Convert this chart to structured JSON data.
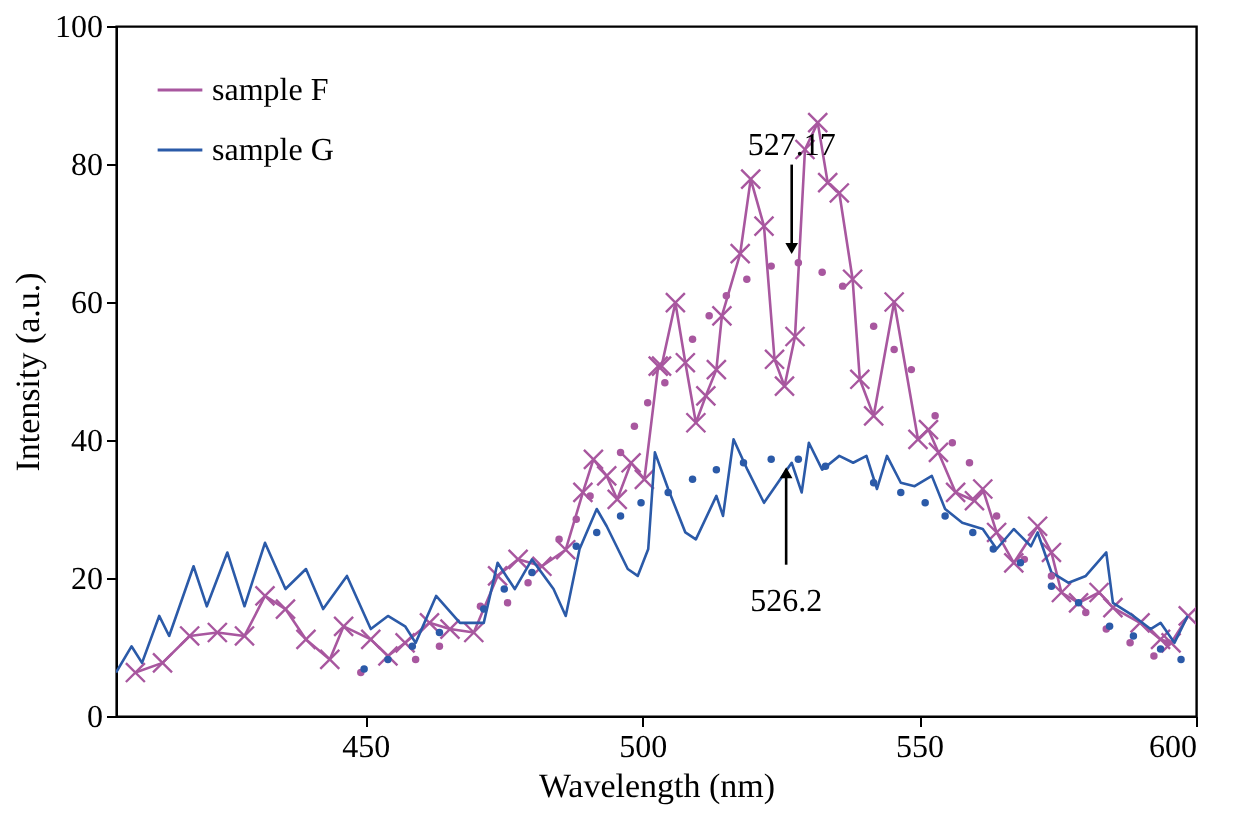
{
  "chart_data": {
    "type": "line",
    "xlabel": "Wavelength  (nm)",
    "ylabel": "Intensity (a.u.)",
    "xlim": [
      405,
      600
    ],
    "xticks": [
      450,
      500,
      550,
      600
    ],
    "ylim": [
      0,
      100
    ],
    "yticks": [
      0,
      20,
      40,
      60,
      80,
      100
    ],
    "grid": false,
    "legend": "top left",
    "annotations": [
      {
        "text": "527.17",
        "x": 527,
        "y": 66
      },
      {
        "text": "526.2",
        "x": 526,
        "y": 37
      }
    ],
    "series": [
      {
        "name": "sample F",
        "color": "#a8579f",
        "marker": "cross",
        "line_style": "solid",
        "x": [
          408.5,
          413.4,
          418.3,
          423.3,
          428.2,
          431.9,
          435.6,
          439.3,
          443.6,
          446.1,
          451,
          454.1,
          457.2,
          461.6,
          465.3,
          469.6,
          473.9,
          477.6,
          481.9,
          486.2,
          489.3,
          491.2,
          493.6,
          495.5,
          498,
          500.4,
          502.9,
          503.5,
          506,
          507.8,
          509.7,
          511.5,
          513.4,
          514.4,
          517.7,
          519.6,
          522,
          523.9,
          525.7,
          527.6,
          529.4,
          531.7,
          533.5,
          535.6,
          538,
          539.3,
          541.8,
          545.5,
          549.8,
          551.7,
          553.5,
          556.6,
          560,
          561.5,
          564,
          567.1,
          571.4,
          573.9,
          575.7,
          578.8,
          582.5,
          585,
          589.9,
          593.6,
          595.5,
          598.6
        ],
        "values": [
          6.3,
          7.7,
          11.6,
          12.1,
          11.6,
          17.4,
          15.5,
          11.1,
          8.2,
          13,
          11.1,
          8.7,
          10.6,
          13.5,
          12.6,
          12.1,
          20.3,
          22.7,
          21.7,
          24.1,
          32.4,
          37.2,
          34.8,
          31.4,
          36.7,
          34.3,
          50.7,
          50.7,
          59.9,
          51.2,
          42.5,
          46.4,
          50.2,
          58,
          67,
          77.8,
          71,
          51.7,
          47.8,
          55,
          82.1,
          86,
          77.3,
          75.8,
          63.3,
          48.8,
          43.5,
          60,
          40.1,
          41.5,
          38.2,
          32.4,
          31.2,
          32.9,
          26.6,
          22.2,
          27.5,
          23.7,
          17.9,
          16.4,
          17.9,
          15.7,
          13.5,
          11.1,
          10.6,
          14.5
        ]
      },
      {
        "name": "sample G",
        "color": "#2b5aa8",
        "marker": "none",
        "line_style": "solid",
        "x": [
          405,
          407.8,
          409.7,
          412.8,
          414.6,
          419,
          421.4,
          425.1,
          428.2,
          431.9,
          435.6,
          439.3,
          442.4,
          446.7,
          451,
          454.1,
          457.2,
          459.1,
          462.8,
          467.1,
          471.4,
          473.9,
          477,
          480.1,
          484,
          486.2,
          488.7,
          491.8,
          493.6,
          497.4,
          499.2,
          501.1,
          502.3,
          504.7,
          507.8,
          509.7,
          513.4,
          514.6,
          516.5,
          519,
          522,
          524.5,
          527,
          528.8,
          530.1,
          532.5,
          535.6,
          538.1,
          540.5,
          542.4,
          544.2,
          546.7,
          549.2,
          552.3,
          554.7,
          557.8,
          561.5,
          564,
          567.1,
          570.2,
          571.4,
          573.9,
          577,
          580.1,
          583.8,
          585,
          588.7,
          591.8,
          593.6,
          596.1,
          598.5
        ],
        "values": [
          6.3,
          10.1,
          7.7,
          14.5,
          11.6,
          21.7,
          15.9,
          23.7,
          15.9,
          25.1,
          18.4,
          21.3,
          15.5,
          20.3,
          12.6,
          14.5,
          13,
          10.6,
          17.4,
          13.5,
          13.5,
          22.2,
          18.4,
          22.7,
          18.4,
          14.5,
          24.2,
          30,
          27.5,
          21.3,
          20.3,
          24.2,
          38.2,
          32.9,
          26.6,
          25.6,
          31.9,
          29,
          40.1,
          35.7,
          30.9,
          33.8,
          36.7,
          32.4,
          39.6,
          35.7,
          37.7,
          36.7,
          37.7,
          32.9,
          37.7,
          33.8,
          33.3,
          34.8,
          30,
          28,
          27.1,
          24.2,
          27.1,
          24.6,
          26.6,
          20.8,
          19.3,
          20.3,
          23.7,
          16.4,
          14.5,
          12.6,
          13.5,
          10.6,
          14.5
        ]
      },
      {
        "type": "scatter",
        "color": "#a8579f",
        "marker": "circle",
        "x": [
          449.2,
          459.1,
          463.4,
          470.8,
          475.7,
          479.4,
          485,
          488.1,
          490.6,
          496.1,
          498.6,
          501,
          504.1,
          509.1,
          512.1,
          515.2,
          518.9,
          523.3,
          528.2,
          532.5,
          536.2,
          541.8,
          545.5,
          548.6,
          552.9,
          556,
          559.1,
          564,
          569,
          573.9,
          580.1,
          583.8,
          588.1,
          592.4,
          594.9
        ],
        "values": [
          6.3,
          8.2,
          10.1,
          15.9,
          16.4,
          19.3,
          25.6,
          28.5,
          31.9,
          38.2,
          42,
          45.4,
          48.3,
          54.6,
          58,
          60.9,
          63.3,
          65.2,
          65.7,
          64.3,
          62.3,
          56.5,
          53.1,
          50.2,
          43.5,
          39.6,
          36.7,
          29,
          22.7,
          20.3,
          15,
          12.6,
          10.6,
          8.7,
          10.6
        ]
      },
      {
        "type": "scatter",
        "color": "#2b5aa8",
        "marker": "circle",
        "x": [
          449.8,
          454.1,
          458.5,
          463.4,
          471.4,
          475.1,
          480.1,
          488.1,
          491.8,
          496.1,
          499.8,
          504.7,
          509.1,
          513.4,
          518.3,
          523.3,
          528.2,
          533.1,
          541.8,
          546.7,
          551.1,
          554.7,
          559.7,
          563.4,
          568.3,
          573.9,
          578.8,
          584.4,
          588.7,
          593.6,
          597.3
        ],
        "values": [
          6.8,
          8.2,
          10.1,
          12.1,
          15.5,
          18.4,
          20.8,
          24.6,
          26.6,
          29,
          30.9,
          32.4,
          34.3,
          35.7,
          36.7,
          37.2,
          37.2,
          36.2,
          33.8,
          32.4,
          30.9,
          29,
          26.6,
          24.2,
          22.2,
          18.8,
          16.4,
          13,
          11.6,
          9.7,
          8.2
        ]
      }
    ]
  }
}
